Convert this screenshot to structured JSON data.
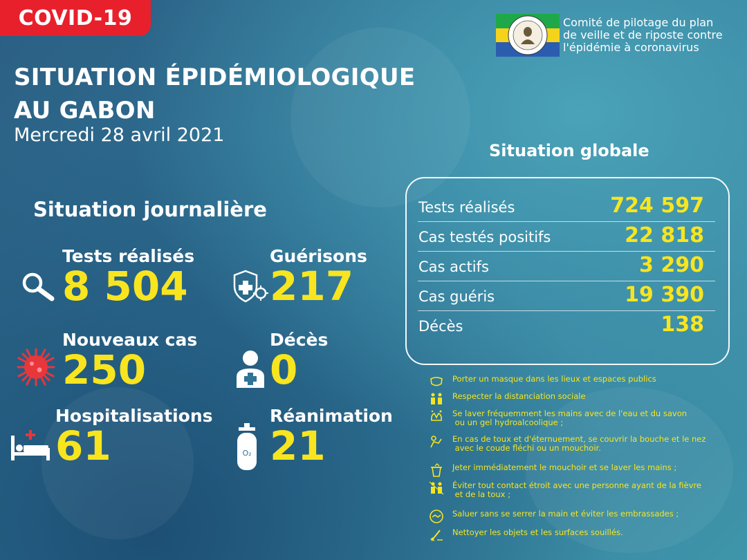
{
  "badge": "COVID-19",
  "org": {
    "lines": [
      "Comité de pilotage du plan",
      "de veille et de riposte contre",
      "l'épidémie à coronavirus"
    ],
    "logo_icon": "gabon-coat-of-arms-logo"
  },
  "title": {
    "line1": "SITUATION ÉPIDÉMIOLOGIQUE",
    "line2": "AU GABON"
  },
  "date": "Mercredi 28 avril 2021",
  "daily": {
    "title": "Situation journalière",
    "tests": {
      "label": "Tests réalisés",
      "value": "8 504",
      "icon": "magnifier-icon"
    },
    "recoveries": {
      "label": "Guérisons",
      "value": "217",
      "icon": "shield-virus-icon"
    },
    "new_cases": {
      "label": "Nouveaux cas",
      "value": "250",
      "icon": "virus-icon"
    },
    "deaths": {
      "label": "Décès",
      "value": "0",
      "icon": "person-cross-icon"
    },
    "hospitalisations": {
      "label": "Hospitalisations",
      "value": "61",
      "icon": "hospital-bed-icon"
    },
    "icu": {
      "label": "Réanimation",
      "value": "21",
      "icon": "oxygen-tank-icon"
    }
  },
  "global": {
    "title": "Situation globale",
    "rows": [
      {
        "label": "Tests réalisés",
        "value": "724 597"
      },
      {
        "label": "Cas testés positifs",
        "value": "22 818"
      },
      {
        "label": "Cas actifs",
        "value": "3 290"
      },
      {
        "label": "Cas guéris",
        "value": "19 390"
      },
      {
        "label": "Décès",
        "value": "138"
      }
    ]
  },
  "advice": [
    {
      "icon": "mask-icon",
      "text": "Porter un masque dans les lieux et espaces publics"
    },
    {
      "icon": "distancing-icon",
      "text": "Respecter la distanciation sociale"
    },
    {
      "icon": "hand-wash-icon",
      "text": "Se laver fréquemment les mains avec de l'eau et du savon\n ou un gel hydroalcoolique ;"
    },
    {
      "icon": "cough-elbow-icon",
      "text": "En cas de toux et d'éternuement, se couvrir la bouche et le nez\n avec le coude fléchi ou un mouchoir."
    },
    {
      "icon": "tissue-bin-icon",
      "text": "Jeter immédiatement le mouchoir et se laver les mains ;"
    },
    {
      "icon": "no-contact-icon",
      "text": "Éviter tout contact étroit avec une personne ayant de la fièvre\n et de la toux ;"
    },
    {
      "icon": "no-handshake-icon",
      "text": "Saluer sans se serrer la main et éviter les embrassades ;"
    },
    {
      "icon": "cleaning-icon",
      "text": "Nettoyer les objets et les surfaces souillés."
    }
  ],
  "colors": {
    "accent_yellow": "#f8e51f",
    "badge_red": "#e8202b",
    "background": "#2f7396"
  }
}
